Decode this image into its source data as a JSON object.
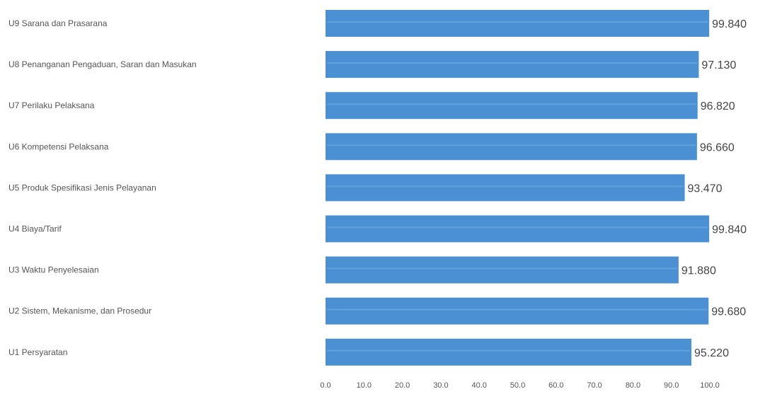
{
  "chart_data": {
    "type": "bar",
    "orientation": "horizontal",
    "categories": [
      "U9  Sarana dan Prasarana",
      "U8  Penanganan Pengaduan, Saran dan Masukan",
      "U7  Perilaku Pelaksana",
      "U6  Kompetensi Pelaksana",
      "U5  Produk Spesifikasi Jenis Pelayanan",
      "U4  Biaya/Tarif",
      "U3  Waktu Penyelesaian",
      "U2  Sistem, Mekanisme, dan Prosedur",
      "U1  Persyaratan"
    ],
    "values": [
      99.84,
      97.13,
      96.82,
      96.66,
      93.47,
      99.84,
      91.88,
      99.68,
      95.22
    ],
    "value_labels": [
      "99.840",
      "97.130",
      "96.820",
      "96.660",
      "93.470",
      "99.840",
      "91.880",
      "99.680",
      "95.220"
    ],
    "x_ticks": [
      "0.0",
      "10.0",
      "20.0",
      "30.0",
      "40.0",
      "50.0",
      "60.0",
      "70.0",
      "80.0",
      "90.0",
      "100.0"
    ],
    "xlim": [
      0,
      100
    ],
    "title": "",
    "xlabel": "",
    "ylabel": "",
    "grid": false,
    "legend": "none",
    "colors": {
      "bar": "#4a90d2",
      "bar_highlight": "#6aa9e2"
    }
  }
}
